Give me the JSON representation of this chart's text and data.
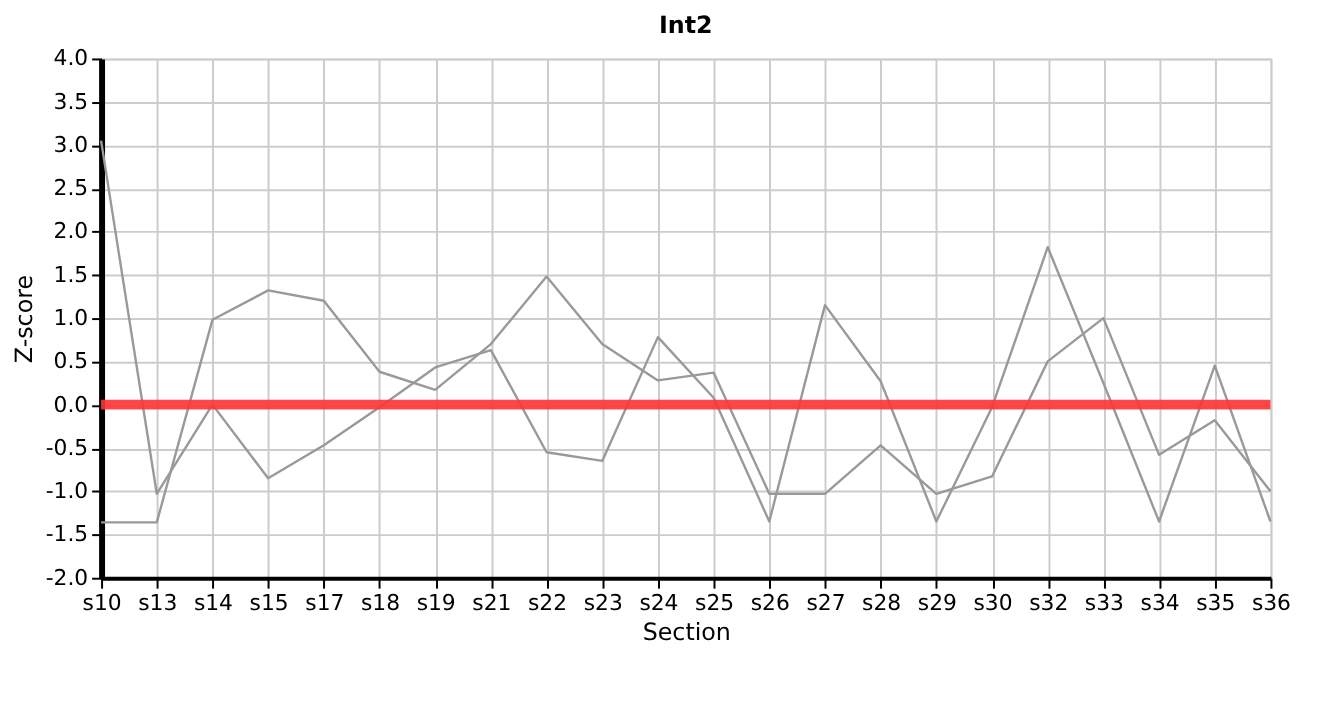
{
  "chart_data": {
    "type": "line",
    "title": "Int2",
    "xlabel": "Section",
    "ylabel": "Z-score",
    "categories": [
      "s10",
      "s13",
      "s14",
      "s15",
      "s17",
      "s18",
      "s19",
      "s21",
      "s22",
      "s23",
      "s24",
      "s25",
      "s26",
      "s27",
      "s28",
      "s29",
      "s30",
      "s32",
      "s33",
      "s34",
      "s35",
      "s36"
    ],
    "series": [
      {
        "color": "#999999",
        "values": [
          3.05,
          -1.03,
          0.0,
          -0.85,
          -0.47,
          -0.03,
          0.43,
          0.63,
          -0.55,
          -0.65,
          0.78,
          0.08,
          -1.35,
          1.15,
          0.27,
          -1.35,
          -0.03,
          1.82,
          0.25,
          -1.35,
          0.45,
          -1.35
        ]
      },
      {
        "color": "#999999",
        "values": [
          -1.36,
          -1.36,
          0.98,
          1.32,
          1.2,
          0.38,
          0.17,
          0.7,
          1.48,
          0.7,
          0.28,
          0.37,
          -1.03,
          -1.03,
          -0.47,
          -1.03,
          -0.83,
          0.5,
          1.0,
          -0.58,
          -0.18,
          -1.0
        ]
      }
    ],
    "ylim": [
      -2.0,
      4.0
    ],
    "yticks": [
      {
        "value": -2,
        "label": "-2.0"
      },
      -1.5,
      {
        "value": -1,
        "label": "-1.0"
      },
      -0.5,
      {
        "value": 0,
        "label": "0.0"
      },
      0.5,
      {
        "value": 1,
        "label": "1.0"
      },
      1.5,
      {
        "value": 2,
        "label": "2.0"
      },
      2.5,
      {
        "value": 3,
        "label": "3.0"
      },
      3.5,
      {
        "value": 4,
        "label": "4.0"
      }
    ],
    "ref_lines": [
      {
        "axis": "y",
        "value": 0,
        "color": "#ff3333"
      }
    ],
    "grid": true,
    "marker": "none",
    "line_style": "solid"
  }
}
